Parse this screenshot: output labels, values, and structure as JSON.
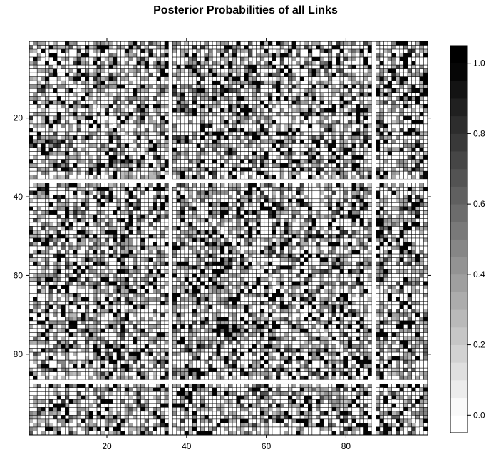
{
  "chart_data": {
    "type": "heatmap",
    "title": "Posterior Probabilities of all Links",
    "xlabel": "",
    "ylabel": "",
    "n": 100,
    "xlim": [
      1,
      100
    ],
    "ylim": [
      1,
      100
    ],
    "x_ticks": [
      20,
      40,
      60,
      80
    ],
    "y_ticks": [
      20,
      40,
      60,
      80
    ],
    "y_axis_direction": "top-to-bottom",
    "colorkey": {
      "ticks": [
        0.0,
        0.2,
        0.4,
        0.6,
        0.8,
        1.0
      ],
      "tick_labels": [
        "0.0",
        "0.2",
        "0.4",
        "0.6",
        "0.8",
        "1.0"
      ],
      "range": [
        -0.05,
        1.05
      ],
      "levels": 22,
      "placement": "right"
    },
    "block_boundaries": [
      36,
      87
    ],
    "grid": true,
    "colors": {
      "low": "#ffffff",
      "high": "#000000",
      "cell_border": "#000000"
    },
    "cell_value_distribution": {
      "white": 0.48,
      "light_gray": 0.3,
      "dark_gray": 0.07,
      "black": 0.15
    },
    "random_seed": 20240611
  }
}
